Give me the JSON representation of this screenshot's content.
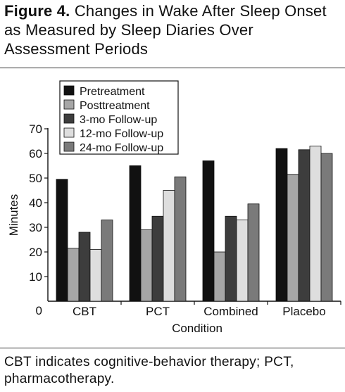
{
  "figure": {
    "label": "Figure 4.",
    "title": "Changes in Wake After Sleep Onset as Measured by Sleep Diaries Over Assessment Periods",
    "footnote": "CBT indicates cognitive-behavior therapy; PCT, pharmacotherapy."
  },
  "chart_data": {
    "type": "bar",
    "xlabel": "Condition",
    "ylabel": "Minutes",
    "ylim": [
      0,
      70
    ],
    "yticks": [
      0,
      10,
      20,
      30,
      40,
      50,
      60,
      70
    ],
    "grid": false,
    "legend_position": "top-left",
    "categories": [
      "CBT",
      "PCT",
      "Combined",
      "Placebo"
    ],
    "series": [
      {
        "name": "Pretreatment",
        "color": "#111111",
        "values": [
          49.5,
          55,
          57,
          62
        ]
      },
      {
        "name": "Posttreatment",
        "color": "#a6a6a6",
        "values": [
          21.5,
          29,
          20,
          51.5
        ]
      },
      {
        "name": "3-mo Follow-up",
        "color": "#3d3d3d",
        "values": [
          28,
          34.5,
          34.5,
          61.5
        ]
      },
      {
        "name": "12-mo Follow-up",
        "color": "#dedede",
        "values": [
          21,
          45,
          33,
          63
        ]
      },
      {
        "name": "24-mo Follow-up",
        "color": "#7a7a7a",
        "values": [
          33,
          50.5,
          39.5,
          60
        ]
      }
    ]
  }
}
